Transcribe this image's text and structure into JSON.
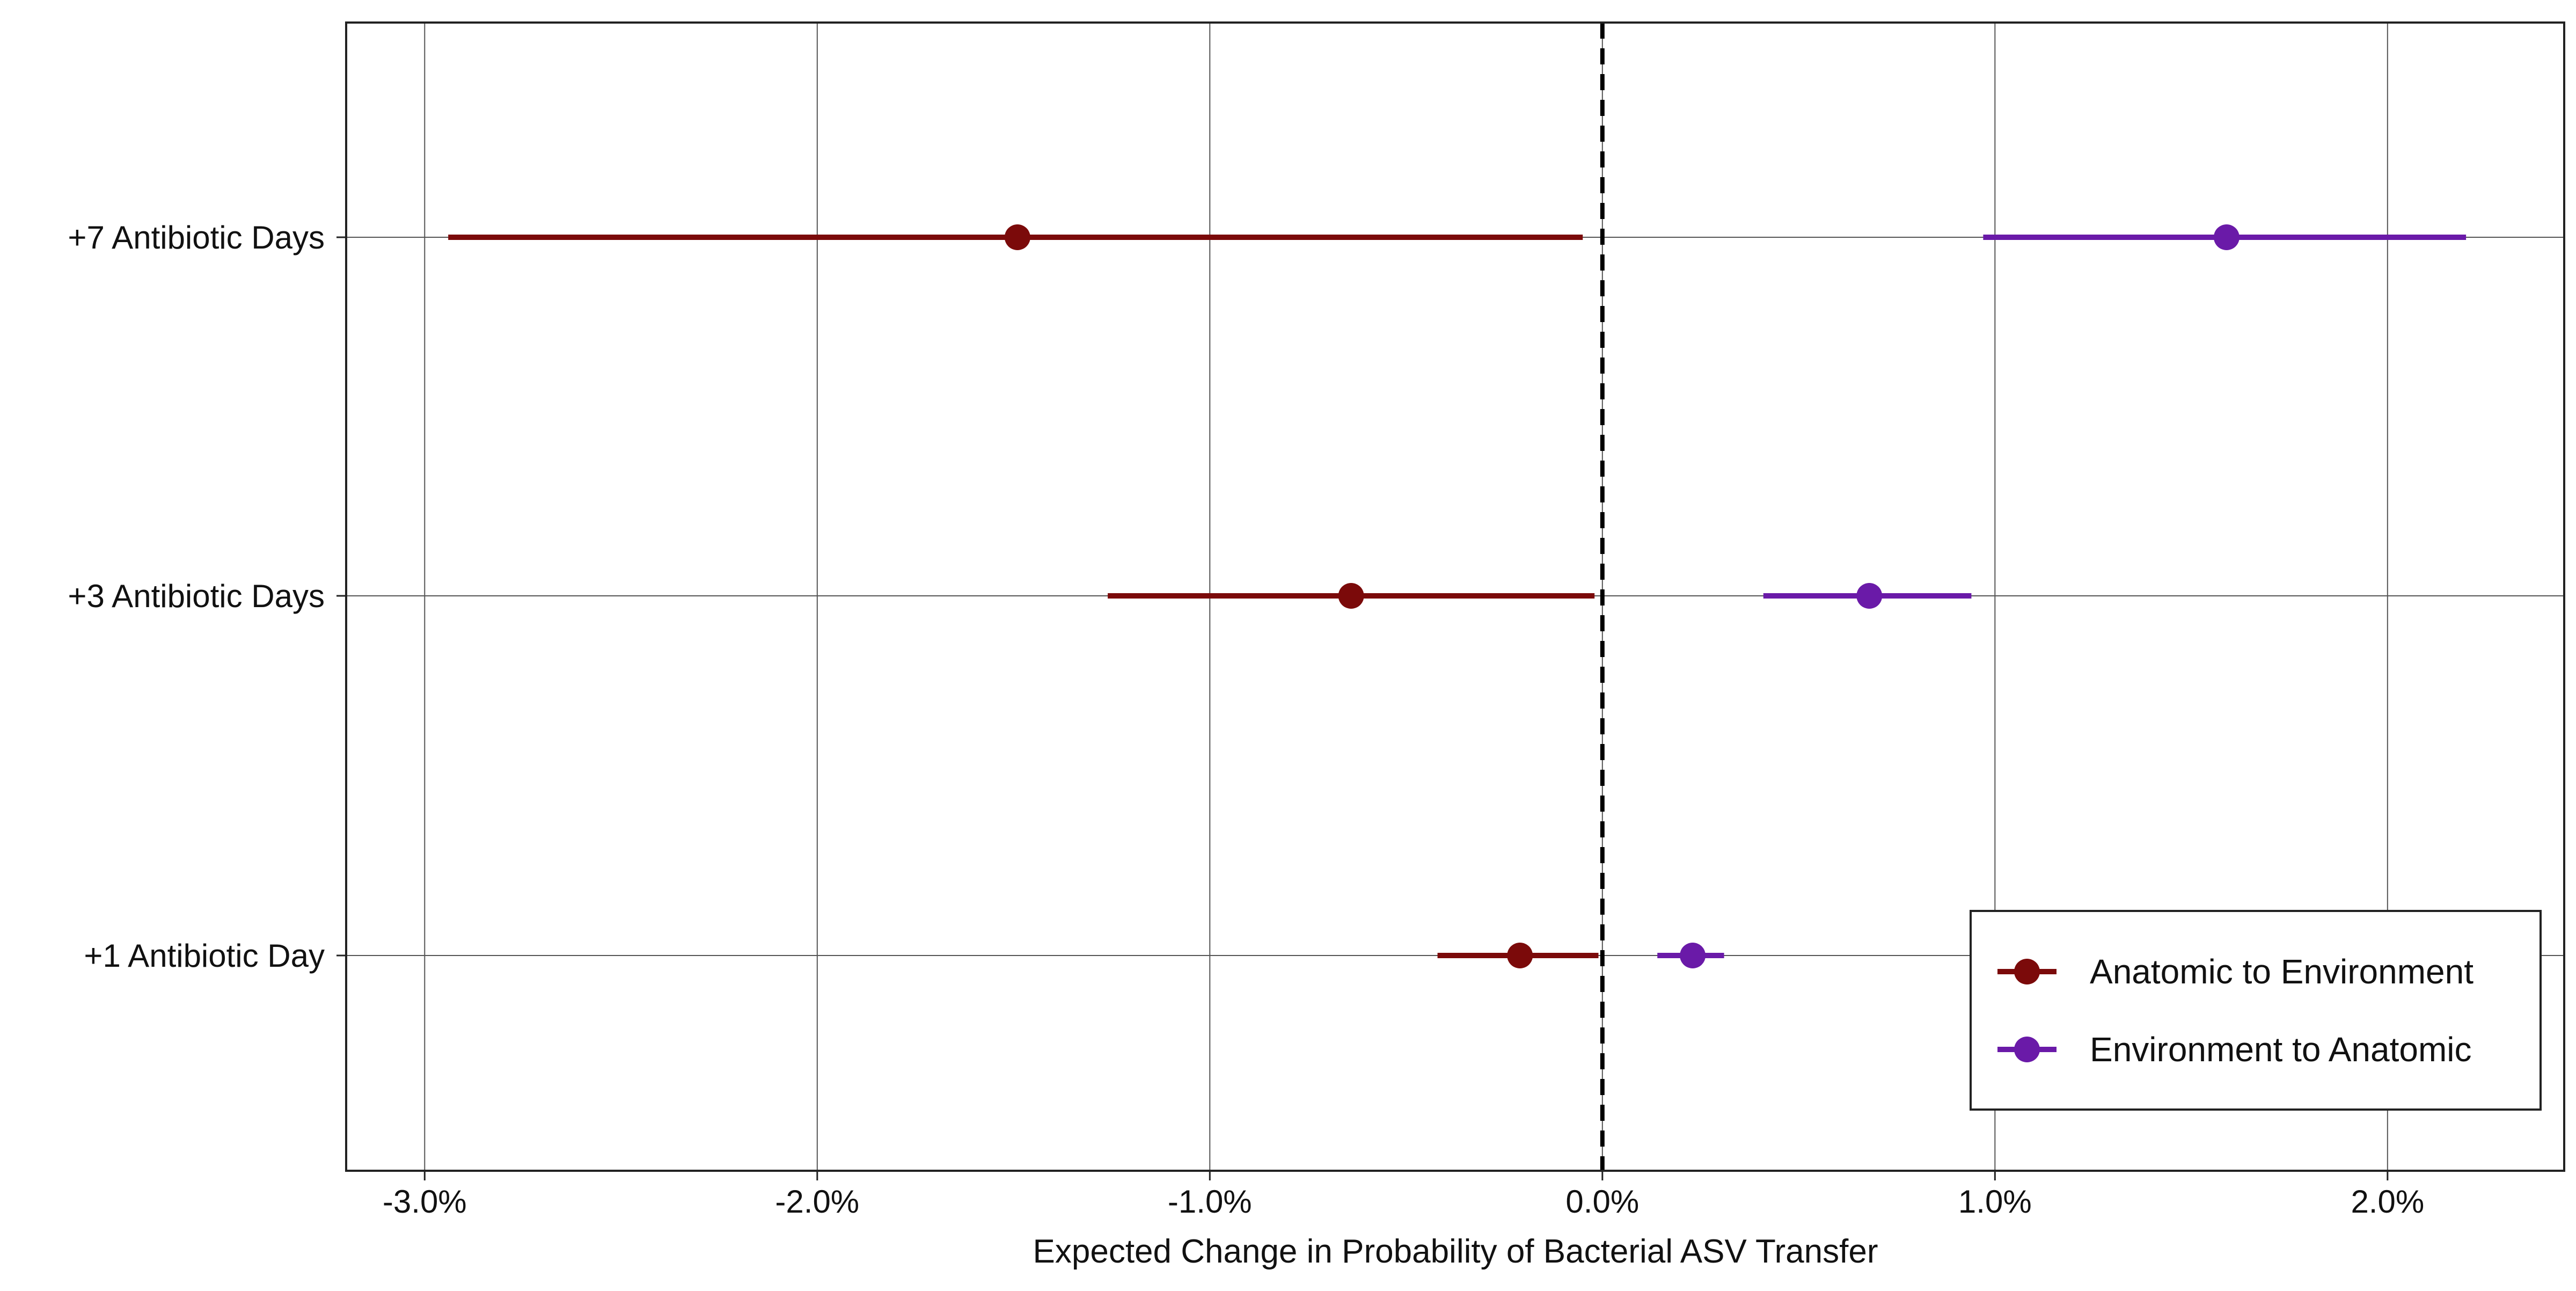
{
  "chart_data": {
    "type": "forest",
    "title": "",
    "xlabel": "Expected Change in Probability of Bacterial ASV Transfer",
    "ylabel": "",
    "xlim": [
      -3.2,
      2.45
    ],
    "x_ticks": [
      -3.0,
      -2.0,
      -1.0,
      0.0,
      1.0,
      2.0
    ],
    "x_tick_labels": [
      "-3.0%",
      "-2.0%",
      "-1.0%",
      "0.0%",
      "1.0%",
      "2.0%"
    ],
    "x_unit": "%",
    "reference_line": {
      "x": 0.0,
      "style": "dashed",
      "color": "#000000"
    },
    "categories": [
      "+7 Antibiotic Days",
      "+3 Antibiotic Days",
      "+1 Antibiotic Day"
    ],
    "grid": true,
    "legend_position": "bottom-right",
    "series": [
      {
        "name": "Anatomic to Environment",
        "color": "#7b0a0a",
        "points": [
          {
            "category": "+7 Antibiotic Days",
            "estimate": -1.49,
            "lower": -2.94,
            "upper": -0.05
          },
          {
            "category": "+3 Antibiotic Days",
            "estimate": -0.64,
            "lower": -1.26,
            "upper": -0.02
          },
          {
            "category": "+1 Antibiotic Day",
            "estimate": -0.21,
            "lower": -0.42,
            "upper": -0.01
          }
        ]
      },
      {
        "name": "Environment to Anatomic",
        "color": "#6a1aa8",
        "points": [
          {
            "category": "+7 Antibiotic Days",
            "estimate": 1.59,
            "lower": 0.97,
            "upper": 2.2
          },
          {
            "category": "+3 Antibiotic Days",
            "estimate": 0.68,
            "lower": 0.41,
            "upper": 0.94
          },
          {
            "category": "+1 Antibiotic Day",
            "estimate": 0.23,
            "lower": 0.14,
            "upper": 0.31
          }
        ]
      }
    ]
  }
}
